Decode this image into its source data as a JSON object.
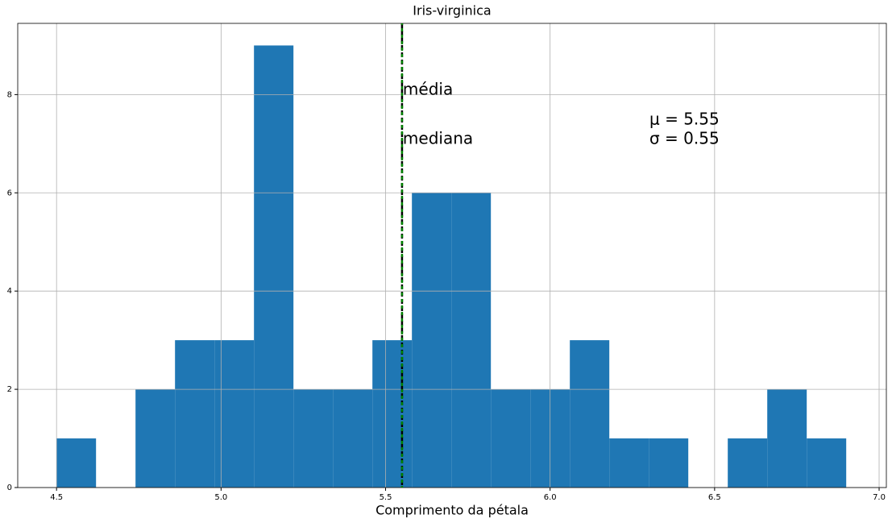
{
  "chart_data": {
    "type": "histogram",
    "title": "Iris-virginica",
    "xlabel": "Comprimento da pétala",
    "bins": [
      4.5,
      4.62,
      4.74,
      4.86,
      4.98,
      5.1,
      5.22,
      5.34,
      5.46,
      5.58,
      5.7,
      5.82,
      5.94,
      6.06,
      6.18,
      6.3,
      6.42,
      6.54,
      6.66,
      6.78,
      6.9
    ],
    "values": [
      1,
      0,
      2,
      3,
      3,
      9,
      2,
      2,
      3,
      6,
      6,
      2,
      2,
      3,
      1,
      1,
      0,
      1,
      2,
      1
    ],
    "color": "#1f77b4",
    "xlim": [
      4.382,
      7.022
    ],
    "ylim": [
      0,
      9.45
    ],
    "xticks": [
      4.5,
      {
        "value": 5.0,
        "label": "5.0"
      },
      5.5,
      {
        "value": 6.0,
        "label": "6.0"
      },
      6.5,
      {
        "value": 7.0,
        "label": "7.0"
      }
    ],
    "yticks": [
      0,
      2,
      4,
      6,
      8
    ],
    "grid": true,
    "mean": 5.55,
    "median": 5.55,
    "mean_color": "#000000",
    "median_color": "#008000",
    "annotations": {
      "mean_label": "média",
      "median_label": "mediana",
      "mu": "μ = 5.55",
      "sigma": "σ = 0.55"
    }
  }
}
